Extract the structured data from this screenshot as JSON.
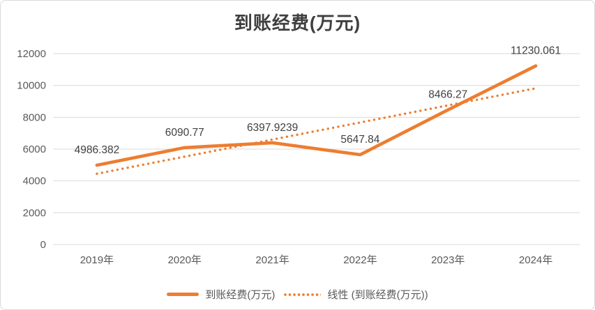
{
  "title": "到账经费(万元)",
  "legend": {
    "series_label": "到账经费(万元)",
    "trend_label": "线性 (到账经费(万元))"
  },
  "colors": {
    "accent": "#ED7D31",
    "gridline": "#D9D9D9",
    "axis_text": "#595959",
    "label_text": "#404040"
  },
  "chart_data": {
    "type": "line",
    "title": "到账经费(万元)",
    "categories": [
      "2019年",
      "2020年",
      "2021年",
      "2022年",
      "2023年",
      "2024年"
    ],
    "series": [
      {
        "name": "到账经费(万元)",
        "style": "solid",
        "values": [
          4986.382,
          6090.77,
          6397.9239,
          5647.84,
          8466.27,
          11230.061
        ],
        "labels": [
          "4986.382",
          "6090.77",
          "6397.9239",
          "5647.84",
          "8466.27",
          "11230.061"
        ]
      },
      {
        "name": "线性 (到账经费(万元))",
        "style": "dotted",
        "is_trendline": true,
        "values": [
          4451.2,
          5525.3,
          6599.5,
          7673.6,
          8747.8,
          9821.9
        ]
      }
    ],
    "ylim": [
      0,
      12000
    ],
    "y_ticks": [
      0,
      2000,
      4000,
      6000,
      8000,
      10000,
      12000
    ],
    "grid": true,
    "legend_position": "bottom"
  }
}
